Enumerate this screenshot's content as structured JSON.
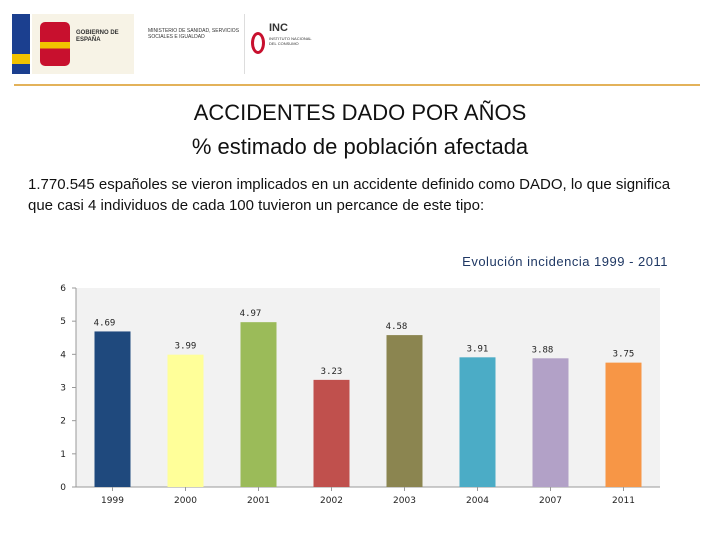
{
  "header": {
    "gobierno": "GOBIERNO DE ESPAÑA",
    "ministerio": "MINISTERIO DE SANIDAD, SERVICIOS SOCIALES E IGUALDAD",
    "inc_short": "INC",
    "inc_full": "INSTITUTO NACIONAL DEL CONSUMO"
  },
  "title_line1": "ACCIDENTES DADO POR AÑOS",
  "title_line2": "% estimado de población afectada",
  "paragraph": "1.770.545 españoles se vieron implicados en un accidente definido como DADO, lo que significa que casi 4 individuos de cada 100 tuvieron un percance de este tipo:",
  "chart_data": {
    "type": "bar",
    "title": "Evolución incidencia 1999 - 2011",
    "categories": [
      "1999",
      "2000",
      "2001",
      "2002",
      "2003",
      "2004",
      "2007",
      "2011"
    ],
    "values": [
      4.69,
      3.99,
      4.97,
      3.23,
      4.58,
      3.91,
      3.88,
      3.75
    ],
    "value_labels": [
      "4.69",
      "3.99",
      "4.97",
      "3.23",
      "4.58",
      "3.91",
      "3.88",
      "3.75"
    ],
    "colors": [
      "#1f497d",
      "#ffff99",
      "#9bbb59",
      "#c0504d",
      "#8b8550",
      "#4bacc6",
      "#b2a1c7",
      "#f79646"
    ],
    "ylim": [
      0,
      6
    ],
    "yticks": [
      "0",
      "1",
      "2",
      "3",
      "4",
      "5",
      "6"
    ],
    "grid": false,
    "legend": "none"
  }
}
